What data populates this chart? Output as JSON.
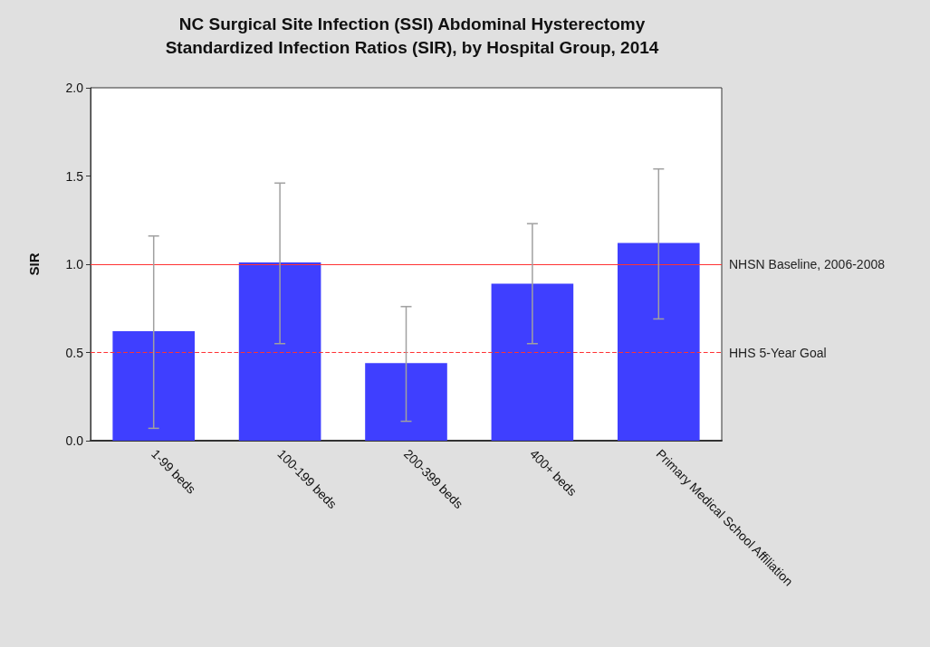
{
  "chart_data": {
    "type": "bar",
    "title": "NC Surgical Site Infection (SSI) Abdominal Hysterectomy\nStandardized Infection Ratios (SIR), by Hospital Group, 2014",
    "ylabel": "SIR",
    "categories": [
      "1-99 beds",
      "100-199 beds",
      "200-399 beds",
      "400+ beds",
      "Primary Medical School Affiliation"
    ],
    "values": [
      0.62,
      1.01,
      0.44,
      0.89,
      1.12
    ],
    "color": "#3f3fff",
    "errors": [
      [
        0.07,
        1.16
      ],
      [
        0.55,
        1.46
      ],
      [
        0.11,
        0.76
      ],
      [
        0.55,
        1.23
      ],
      [
        0.69,
        1.54
      ]
    ],
    "ylim": [
      0,
      2
    ],
    "yticks": [
      {
        "value": 0,
        "label": "0.0"
      },
      {
        "value": 0.5,
        "label": "0.5"
      },
      {
        "value": 1,
        "label": "1.0"
      },
      {
        "value": 1.5,
        "label": "1.5"
      },
      {
        "value": 2,
        "label": "2.0"
      }
    ],
    "ref_lines": [
      {
        "axis": "y",
        "value": 1,
        "label": "NHSN Baseline, 2006-2008",
        "color": "#ff3333",
        "line_style": "solid"
      },
      {
        "axis": "y",
        "value": 0.5,
        "label": "HHS 5-Year Goal",
        "color": "#ff3333",
        "line_style": "dashed"
      }
    ],
    "grid": false
  }
}
